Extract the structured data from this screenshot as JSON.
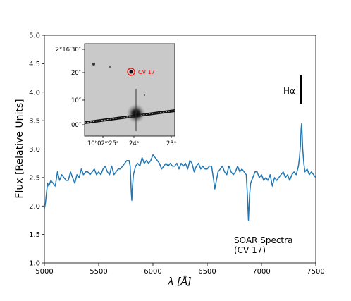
{
  "chart_data": {
    "type": "line",
    "xlabel": "λ [Å]",
    "ylabel": "Flux [Relative Units]",
    "xlim": [
      5000,
      7500
    ],
    "ylim": [
      1.0,
      5.0
    ],
    "xticks": [
      "5000",
      "5500",
      "6000",
      "6500",
      "7000",
      "7500"
    ],
    "yticks": [
      "1.0",
      "1.5",
      "2.0",
      "2.5",
      "3.0",
      "3.5",
      "4.0",
      "4.5",
      "5.0"
    ],
    "grid": false,
    "series_color": "#1f77b4",
    "series": [
      {
        "name": "",
        "x": [
          5000,
          5010,
          5020,
          5030,
          5040,
          5060,
          5080,
          5100,
          5120,
          5140,
          5160,
          5180,
          5200,
          5220,
          5240,
          5260,
          5280,
          5300,
          5320,
          5340,
          5360,
          5380,
          5400,
          5420,
          5440,
          5460,
          5480,
          5500,
          5520,
          5540,
          5560,
          5580,
          5600,
          5620,
          5640,
          5660,
          5680,
          5700,
          5720,
          5740,
          5760,
          5780,
          5790,
          5800,
          5805,
          5810,
          5820,
          5840,
          5860,
          5880,
          5900,
          5920,
          5940,
          5960,
          5980,
          6000,
          6020,
          6040,
          6060,
          6080,
          6100,
          6120,
          6140,
          6160,
          6180,
          6200,
          6220,
          6240,
          6260,
          6280,
          6300,
          6320,
          6340,
          6360,
          6380,
          6400,
          6420,
          6440,
          6460,
          6480,
          6500,
          6520,
          6540,
          6560,
          6570,
          6580,
          6600,
          6620,
          6640,
          6660,
          6680,
          6700,
          6720,
          6740,
          6760,
          6780,
          6800,
          6820,
          6840,
          6860,
          6870,
          6880,
          6890,
          6900,
          6920,
          6940,
          6960,
          6980,
          7000,
          7020,
          7040,
          7060,
          7080,
          7100,
          7120,
          7140,
          7160,
          7180,
          7200,
          7220,
          7240,
          7260,
          7280,
          7300,
          7320,
          7340,
          7350,
          7360,
          7365,
          7370,
          7380,
          7390,
          7400,
          7420,
          7440,
          7460,
          7480,
          7500
        ],
        "values": [
          1.95,
          2.05,
          2.25,
          2.4,
          2.35,
          2.45,
          2.4,
          2.35,
          2.6,
          2.45,
          2.55,
          2.5,
          2.45,
          2.45,
          2.6,
          2.5,
          2.4,
          2.55,
          2.5,
          2.65,
          2.55,
          2.6,
          2.6,
          2.55,
          2.6,
          2.65,
          2.55,
          2.6,
          2.55,
          2.65,
          2.7,
          2.6,
          2.55,
          2.7,
          2.55,
          2.6,
          2.65,
          2.65,
          2.7,
          2.75,
          2.8,
          2.8,
          2.7,
          2.25,
          2.1,
          2.3,
          2.55,
          2.7,
          2.75,
          2.7,
          2.85,
          2.75,
          2.8,
          2.75,
          2.8,
          2.9,
          2.85,
          2.8,
          2.75,
          2.65,
          2.7,
          2.75,
          2.7,
          2.75,
          2.7,
          2.7,
          2.75,
          2.65,
          2.75,
          2.7,
          2.75,
          2.65,
          2.8,
          2.75,
          2.6,
          2.7,
          2.75,
          2.65,
          2.7,
          2.65,
          2.65,
          2.7,
          2.7,
          2.45,
          2.3,
          2.4,
          2.6,
          2.65,
          2.7,
          2.6,
          2.55,
          2.7,
          2.6,
          2.55,
          2.6,
          2.7,
          2.6,
          2.65,
          2.6,
          2.55,
          2.2,
          1.75,
          2.2,
          2.4,
          2.5,
          2.6,
          2.6,
          2.5,
          2.55,
          2.45,
          2.5,
          2.45,
          2.55,
          2.35,
          2.5,
          2.45,
          2.5,
          2.55,
          2.6,
          2.5,
          2.55,
          2.45,
          2.55,
          2.6,
          2.55,
          2.7,
          2.85,
          3.1,
          3.35,
          3.45,
          3.0,
          2.75,
          2.6,
          2.65,
          2.55,
          2.6,
          2.55,
          2.5
        ]
      }
    ],
    "annotations": {
      "halpha": "Hα",
      "spectrum_line1": "SOAR Spectra",
      "spectrum_line2": "(CV 17)"
    },
    "inset": {
      "type": "image",
      "target_label": "CV 17",
      "target_color": "#ff0000",
      "y_tick_labels": [
        "2°16′30″",
        "20″",
        "10″",
        "00″"
      ],
      "x_tick_labels": [
        "10ʰ02ᵐ25ˢ",
        "24ˢ",
        "23ˢ"
      ]
    }
  }
}
